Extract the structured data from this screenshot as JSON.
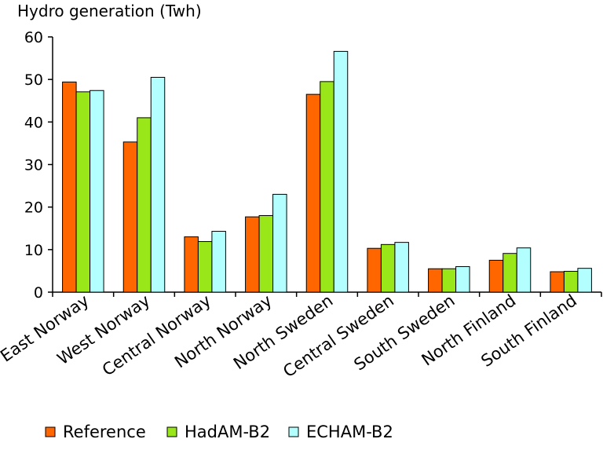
{
  "chart_data": {
    "type": "bar",
    "title": "",
    "ylabel": "Hydro generation (Twh)",
    "xlabel": "",
    "ylim": [
      0,
      60
    ],
    "yticks": [
      0,
      10,
      20,
      30,
      40,
      50,
      60
    ],
    "grid": false,
    "legend_position": "bottom",
    "categories": [
      "East Norway",
      "West Norway",
      "Central Norway",
      "North Norway",
      "North Sweden",
      "Central Sweden",
      "South Sweden",
      "North Finland",
      "South Finland"
    ],
    "series": [
      {
        "name": "Reference",
        "color": "#ff6600",
        "values": [
          49.4,
          35.3,
          13.0,
          17.7,
          46.5,
          10.3,
          5.5,
          7.5,
          4.8
        ]
      },
      {
        "name": "HadAM-B2",
        "color": "#99e619",
        "values": [
          47.1,
          41.0,
          11.9,
          18.0,
          49.5,
          11.2,
          5.5,
          9.1,
          4.9
        ]
      },
      {
        "name": "ECHAM-B2",
        "color": "#b3ffff",
        "values": [
          47.4,
          50.5,
          14.3,
          23.0,
          56.6,
          11.7,
          6.0,
          10.4,
          5.6
        ]
      }
    ]
  }
}
